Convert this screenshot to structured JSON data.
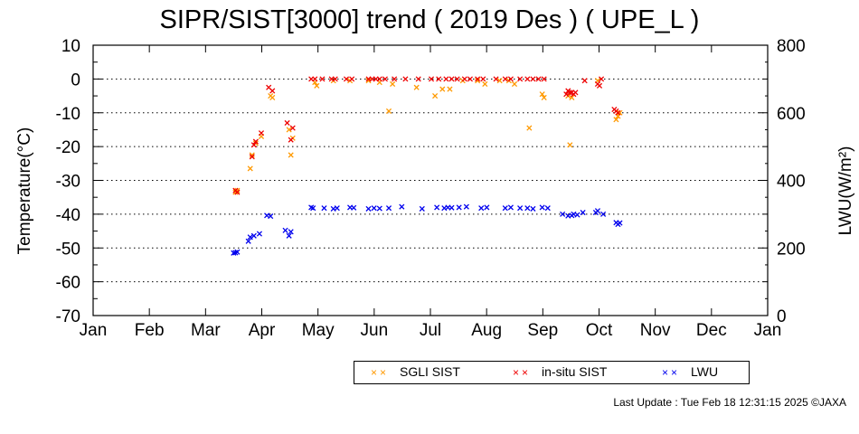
{
  "title": "SIPR/SIST[3000] trend ( 2019 Des ) ( UPE_L )",
  "footer": "Last Update : Tue Feb 18 12:31:15 2025 ©JAXA",
  "chart_data": {
    "type": "scatter",
    "title": "SIPR/SIST[3000] trend ( 2019 Des ) ( UPE_L )",
    "ylabel": "Temperature(°C)",
    "y2label": "LWU(W/m²)",
    "ylim": [
      -70,
      10
    ],
    "y2lim": [
      0,
      800
    ],
    "yticks": [
      "10",
      "0",
      "-10",
      "-20",
      "-30",
      "-40",
      "-50",
      "-60",
      "-70"
    ],
    "y2ticks": [
      "800",
      "600",
      "400",
      "200",
      "0"
    ],
    "months": [
      "Jan",
      "Feb",
      "Mar",
      "Apr",
      "May",
      "Jun",
      "Jul",
      "Aug",
      "Sep",
      "Oct",
      "Nov",
      "Dec",
      "Jan"
    ],
    "grid": "horizontal dotted",
    "legend_position": "bottom-right",
    "series": [
      {
        "name": "SGLI SIST",
        "color": "#ff9900",
        "axis": "left",
        "points": [
          [
            "2019-03-19",
            -33.5
          ],
          [
            "2019-03-20",
            -33
          ],
          [
            "2019-03-27",
            -26.5
          ],
          [
            "2019-03-28",
            -22.5
          ],
          [
            "2019-03-30",
            -19
          ],
          [
            "2019-04-02",
            -17
          ],
          [
            "2019-04-07",
            -5
          ],
          [
            "2019-04-08",
            -5.5
          ],
          [
            "2019-04-17",
            -15
          ],
          [
            "2019-04-18",
            -22.5
          ],
          [
            "2019-04-19",
            -17.5
          ],
          [
            "2019-05-01",
            -1
          ],
          [
            "2019-05-02",
            -2
          ],
          [
            "2019-05-11",
            -0.5
          ],
          [
            "2019-05-20",
            -0.5
          ],
          [
            "2019-05-30",
            -0.5
          ],
          [
            "2019-06-05",
            -1
          ],
          [
            "2019-06-10",
            -9.5
          ],
          [
            "2019-06-12",
            -1.5
          ],
          [
            "2019-06-25",
            -2.5
          ],
          [
            "2019-07-05",
            -5
          ],
          [
            "2019-07-09",
            -3
          ],
          [
            "2019-07-13",
            -3
          ],
          [
            "2019-07-20",
            -0.5
          ],
          [
            "2019-07-28",
            -0.5
          ],
          [
            "2019-08-01",
            -1.5
          ],
          [
            "2019-08-09",
            -0.5
          ],
          [
            "2019-08-14",
            -0.5
          ],
          [
            "2019-08-17",
            -1.5
          ],
          [
            "2019-08-25",
            -14.5
          ],
          [
            "2019-09-01",
            -4.5
          ],
          [
            "2019-09-02",
            -5.5
          ],
          [
            "2019-09-15",
            -5
          ],
          [
            "2019-09-16",
            -19.5
          ],
          [
            "2019-09-17",
            -5.5
          ],
          [
            "2019-10-01",
            -0.5
          ],
          [
            "2019-10-11",
            -12
          ],
          [
            "2019-10-12",
            -11
          ],
          [
            "2019-10-13",
            -10
          ]
        ]
      },
      {
        "name": "in-situ SIST",
        "color": "#ee0000",
        "axis": "left",
        "points": [
          [
            "2019-03-19",
            -33
          ],
          [
            "2019-03-20",
            -33.5
          ],
          [
            "2019-03-28",
            -23
          ],
          [
            "2019-03-29",
            -19.5
          ],
          [
            "2019-03-30",
            -18.5
          ],
          [
            "2019-04-02",
            -16
          ],
          [
            "2019-04-06",
            -2.5
          ],
          [
            "2019-04-08",
            -3.5
          ],
          [
            "2019-04-16",
            -13
          ],
          [
            "2019-04-18",
            -18
          ],
          [
            "2019-04-19",
            -14.5
          ],
          [
            "2019-04-29",
            0
          ],
          [
            "2019-05-01",
            0
          ],
          [
            "2019-05-05",
            0
          ],
          [
            "2019-05-10",
            0
          ],
          [
            "2019-05-12",
            0
          ],
          [
            "2019-05-18",
            0
          ],
          [
            "2019-05-21",
            0
          ],
          [
            "2019-05-30",
            0
          ],
          [
            "2019-06-01",
            0
          ],
          [
            "2019-06-03",
            0
          ],
          [
            "2019-06-05",
            0
          ],
          [
            "2019-06-08",
            0
          ],
          [
            "2019-06-13",
            0
          ],
          [
            "2019-06-19",
            0
          ],
          [
            "2019-06-26",
            0
          ],
          [
            "2019-07-03",
            0
          ],
          [
            "2019-07-07",
            0
          ],
          [
            "2019-07-11",
            0
          ],
          [
            "2019-07-14",
            0
          ],
          [
            "2019-07-17",
            0
          ],
          [
            "2019-07-21",
            0
          ],
          [
            "2019-07-24",
            0
          ],
          [
            "2019-07-28",
            0
          ],
          [
            "2019-07-31",
            0
          ],
          [
            "2019-08-07",
            0
          ],
          [
            "2019-08-12",
            0
          ],
          [
            "2019-08-15",
            0
          ],
          [
            "2019-08-20",
            0
          ],
          [
            "2019-08-24",
            0
          ],
          [
            "2019-08-27",
            0
          ],
          [
            "2019-08-30",
            0
          ],
          [
            "2019-09-02",
            0
          ],
          [
            "2019-09-14",
            -4.5
          ],
          [
            "2019-09-15",
            -3.5
          ],
          [
            "2019-09-16",
            -4
          ],
          [
            "2019-09-17",
            -4
          ],
          [
            "2019-09-18",
            -4.5
          ],
          [
            "2019-09-19",
            -4
          ],
          [
            "2019-09-24",
            -0.5
          ],
          [
            "2019-10-01",
            -1.5
          ],
          [
            "2019-10-02",
            -2
          ],
          [
            "2019-10-03",
            0
          ],
          [
            "2019-10-10",
            -9
          ],
          [
            "2019-10-11",
            -9.5
          ],
          [
            "2019-10-12",
            -10
          ]
        ]
      },
      {
        "name": "LWU",
        "color": "#0000ee",
        "axis": "right",
        "points": [
          [
            "2019-03-18",
            185
          ],
          [
            "2019-03-19",
            186
          ],
          [
            "2019-03-20",
            188
          ],
          [
            "2019-03-26",
            220
          ],
          [
            "2019-03-27",
            232
          ],
          [
            "2019-03-29",
            236
          ],
          [
            "2019-04-01",
            242
          ],
          [
            "2019-04-05",
            296
          ],
          [
            "2019-04-07",
            294
          ],
          [
            "2019-04-15",
            252
          ],
          [
            "2019-04-17",
            236
          ],
          [
            "2019-04-18",
            248
          ],
          [
            "2019-04-29",
            320
          ],
          [
            "2019-04-30",
            318
          ],
          [
            "2019-05-06",
            318
          ],
          [
            "2019-05-11",
            316
          ],
          [
            "2019-05-13",
            318
          ],
          [
            "2019-05-20",
            320
          ],
          [
            "2019-05-22",
            319
          ],
          [
            "2019-05-30",
            316
          ],
          [
            "2019-06-02",
            318
          ],
          [
            "2019-06-05",
            317
          ],
          [
            "2019-06-10",
            318
          ],
          [
            "2019-06-17",
            322
          ],
          [
            "2019-06-28",
            316
          ],
          [
            "2019-07-06",
            320
          ],
          [
            "2019-07-10",
            318
          ],
          [
            "2019-07-12",
            320
          ],
          [
            "2019-07-14",
            319
          ],
          [
            "2019-07-18",
            320
          ],
          [
            "2019-07-22",
            322
          ],
          [
            "2019-07-30",
            318
          ],
          [
            "2019-08-02",
            320
          ],
          [
            "2019-08-12",
            318
          ],
          [
            "2019-08-15",
            320
          ],
          [
            "2019-08-20",
            318
          ],
          [
            "2019-08-24",
            318
          ],
          [
            "2019-08-27",
            316
          ],
          [
            "2019-09-01",
            320
          ],
          [
            "2019-09-04",
            318
          ],
          [
            "2019-09-12",
            300
          ],
          [
            "2019-09-15",
            295
          ],
          [
            "2019-09-17",
            296
          ],
          [
            "2019-09-18",
            300
          ],
          [
            "2019-09-20",
            298
          ],
          [
            "2019-09-23",
            305
          ],
          [
            "2019-09-30",
            305
          ],
          [
            "2019-10-01",
            310
          ],
          [
            "2019-10-04",
            300
          ],
          [
            "2019-10-11",
            275
          ],
          [
            "2019-10-12",
            270
          ],
          [
            "2019-10-13",
            274
          ]
        ]
      }
    ]
  }
}
